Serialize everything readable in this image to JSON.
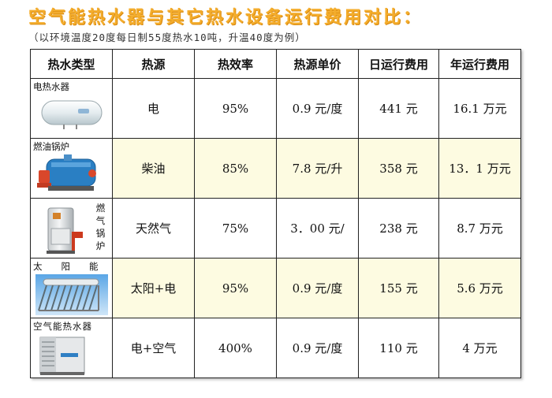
{
  "title": "空气能热水器与其它热水设备运行费用对比：",
  "subtitle": "（以环境温度20度每日制55度热水10吨，升温40度为例）",
  "table": {
    "headers": [
      "热水类型",
      "热源",
      "热效率",
      "热源单价",
      "日运行费用",
      "年运行费用"
    ],
    "rows": [
      {
        "type": "电热水器",
        "source": "电",
        "efficiency": "95%",
        "price": "0.9 元/度",
        "daily": "441 元",
        "yearly": "16.1 万元"
      },
      {
        "type": "燃油锅炉",
        "source": "柴油",
        "efficiency": "85%",
        "price": "7.8 元/升",
        "daily": "358 元",
        "yearly": "13．1 万元"
      },
      {
        "type": "燃气锅炉",
        "source": "天然气",
        "efficiency": "75%",
        "price": "3．00 元/",
        "daily": "238 元",
        "yearly": "8.7 万元"
      },
      {
        "type": "太阳能",
        "source": "太阳+电",
        "efficiency": "95%",
        "price": "0.9 元/度",
        "daily": "155 元",
        "yearly": "5.6 万元"
      },
      {
        "type": "空气能热水器",
        "source": "电+空气",
        "efficiency": "400%",
        "price": "0.9 元/度",
        "daily": "110 元",
        "yearly": "4 万元"
      }
    ]
  }
}
